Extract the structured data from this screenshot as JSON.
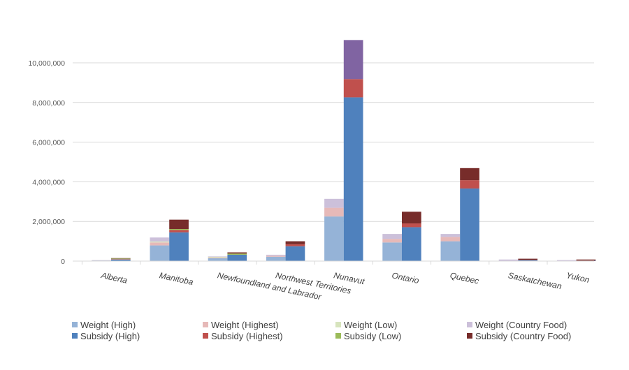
{
  "chart_data": {
    "type": "bar",
    "stacked": true,
    "title": "",
    "xlabel": "",
    "ylabel": "",
    "ylim": [
      0,
      12000000
    ],
    "yticks": [
      0,
      2000000,
      4000000,
      6000000,
      8000000,
      10000000
    ],
    "ytick_labels": [
      "0",
      "2,000,000",
      "4,000,000",
      "6,000,000",
      "8,000,000",
      "10,000,000"
    ],
    "grid": true,
    "legend_position": "bottom",
    "categories": [
      "Alberta",
      "Manitoba",
      "Newfoundland and Labrador",
      "Northwest Territories",
      "Nunavut",
      "Ontario",
      "Quebec",
      "Saskatchewan",
      "Yukon"
    ],
    "stacks": [
      {
        "name": "Weight",
        "series": [
          {
            "name": "Weight (High)",
            "color": "#95B3D7",
            "values": [
              30000,
              790000,
              140000,
              220000,
              2250000,
              940000,
              1000000,
              10000,
              5000
            ]
          },
          {
            "name": "Weight (Highest)",
            "color": "#E6B9B8",
            "values": [
              5000,
              150000,
              40000,
              50000,
              440000,
              180000,
              220000,
              5000,
              5000
            ]
          },
          {
            "name": "Weight (Low)",
            "color": "#D7E4BD",
            "values": [
              5000,
              50000,
              40000,
              0,
              0,
              0,
              0,
              0,
              0
            ]
          },
          {
            "name": "Weight (Country Food)",
            "color": "#CCC0DA",
            "values": [
              10000,
              200000,
              20000,
              50000,
              450000,
              250000,
              150000,
              65000,
              40000
            ]
          }
        ]
      },
      {
        "name": "Subsidy",
        "series": [
          {
            "name": "Subsidy (High)",
            "color": "#4F81BD",
            "values": [
              80000,
              1450000,
              320000,
              750000,
              8260000,
              1710000,
              3660000,
              50000,
              20000
            ]
          },
          {
            "name": "Subsidy (Highest)",
            "color": "#C0504D",
            "values": [
              20000,
              120000,
              0,
              100000,
              920000,
              190000,
              420000,
              10000,
              5000
            ]
          },
          {
            "name": "Subsidy (Low)",
            "color": "#9BBB59",
            "values": [
              30000,
              50000,
              60000,
              0,
              0,
              0,
              0,
              0,
              0
            ]
          },
          {
            "name": "Subsidy (Country Food)",
            "color": "#772C2A",
            "values": [
              20000,
              470000,
              60000,
              150000,
              1970000,
              590000,
              610000,
              60000,
              55000
            ],
            "point_colors": {
              "Nunavut": "#8064A2"
            }
          }
        ]
      }
    ]
  },
  "legend": [
    {
      "label": "Weight (High)",
      "color": "#95B3D7"
    },
    {
      "label": "Weight (Highest)",
      "color": "#E6B9B8"
    },
    {
      "label": "Weight (Low)",
      "color": "#D7E4BD"
    },
    {
      "label": "Weight (Country Food)",
      "color": "#CCC0DA"
    },
    {
      "label": "Subsidy (High)",
      "color": "#4F81BD"
    },
    {
      "label": "Subsidy (Highest)",
      "color": "#C0504D"
    },
    {
      "label": "Subsidy (Low)",
      "color": "#9BBB59"
    },
    {
      "label": "Subsidy (Country Food)",
      "color": "#772C2A"
    }
  ]
}
